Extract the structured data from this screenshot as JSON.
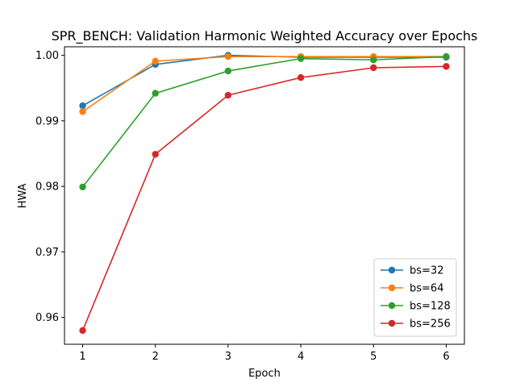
{
  "chart_data": {
    "type": "line",
    "title": "SPR_BENCH: Validation Harmonic Weighted Accuracy over Epochs",
    "xlabel": "Epoch",
    "ylabel": "HWA",
    "x": [
      1,
      2,
      3,
      4,
      5,
      6
    ],
    "xlim": [
      0.75,
      6.25
    ],
    "ylim": [
      0.9559,
      1.0013
    ],
    "xticks": [
      "1",
      "2",
      "3",
      "4",
      "5",
      "6"
    ],
    "yticks": [
      0.96,
      0.97,
      0.98,
      0.99,
      1.0
    ],
    "ytick_labels": [
      "0.96",
      "0.97",
      "0.98",
      "0.99",
      "1.00"
    ],
    "legend_position": "lower-right",
    "series": [
      {
        "name": "bs=32",
        "color": "#1f77b4",
        "values": [
          0.9923,
          0.9986,
          1.0,
          0.9997,
          0.9997,
          0.9997
        ]
      },
      {
        "name": "bs=64",
        "color": "#ff7f0e",
        "values": [
          0.9914,
          0.9991,
          0.9998,
          0.9998,
          0.9998,
          0.9998
        ]
      },
      {
        "name": "bs=128",
        "color": "#2ca02c",
        "values": [
          0.9799,
          0.9942,
          0.9976,
          0.9995,
          0.9993,
          0.9998
        ]
      },
      {
        "name": "bs=256",
        "color": "#d62728",
        "values": [
          0.958,
          0.9849,
          0.9939,
          0.9966,
          0.9981,
          0.9983
        ]
      }
    ]
  }
}
